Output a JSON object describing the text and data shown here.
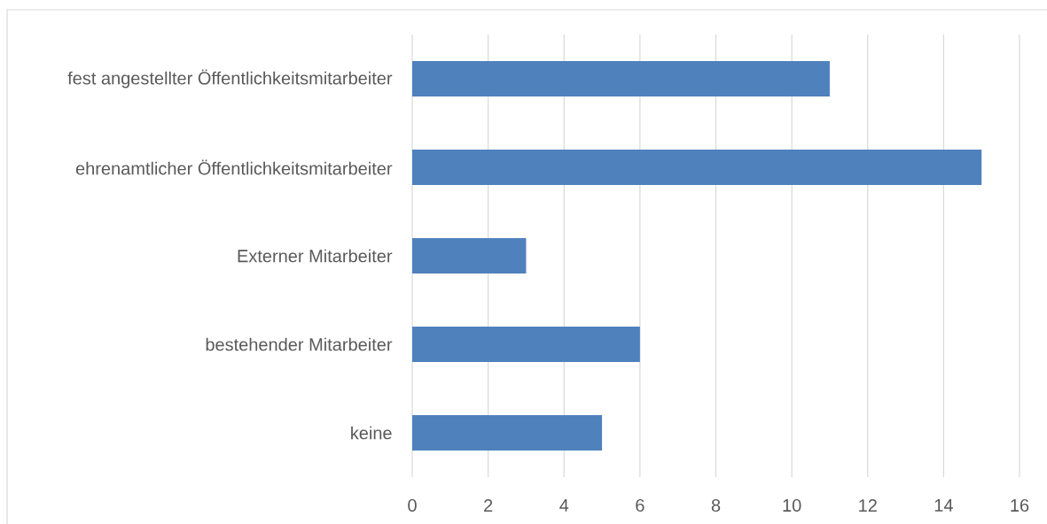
{
  "chart_data": {
    "type": "bar",
    "orientation": "horizontal",
    "categories": [
      "fest angestellter Öffentlichkeitsmitarbeiter",
      "ehrenamtlicher Öffentlichkeitsmitarbeiter",
      "Externer Mitarbeiter",
      "bestehender Mitarbeiter",
      "keine"
    ],
    "values": [
      11,
      15,
      3,
      6,
      5
    ],
    "color": "#4f81bd",
    "xlim": [
      0,
      16
    ],
    "xticks": [
      0,
      2,
      4,
      6,
      8,
      10,
      12,
      14,
      16
    ],
    "grid": "x"
  }
}
